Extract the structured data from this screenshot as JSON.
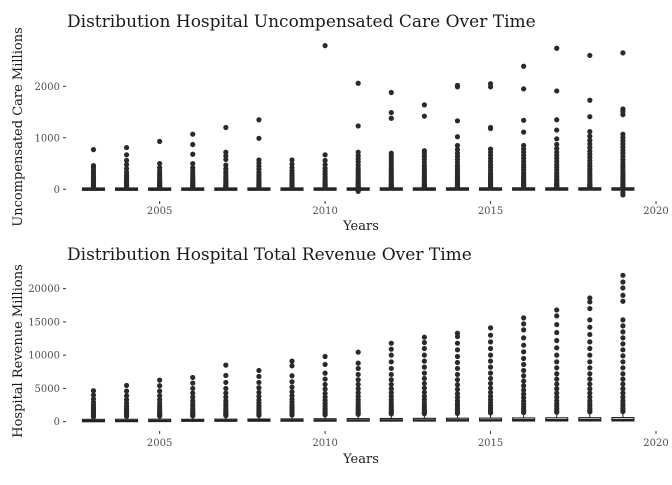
{
  "chart_data": [
    {
      "type": "box",
      "title": "Distribution Hospital Uncompensated Care Over Time",
      "xlabel": "Years",
      "ylabel": "Uncompensated Care Millions",
      "xlim": [
        2002.2,
        2020
      ],
      "ylim": [
        -150,
        2900
      ],
      "x_ticks": [
        2005,
        2010,
        2015,
        2020
      ],
      "y_ticks": [
        0,
        1000,
        2000
      ],
      "grid": false,
      "groups": [
        {
          "year": 2003,
          "q1": 0,
          "median": 2,
          "q3": 5,
          "whisker_low": 0,
          "whisker_high": 14,
          "outliers": [
            770,
            460,
            420,
            370,
            330,
            290,
            250,
            220,
            190,
            160,
            130,
            110,
            90,
            70,
            55,
            40,
            30,
            22
          ]
        },
        {
          "year": 2004,
          "q1": 0,
          "median": 2,
          "q3": 5,
          "whisker_low": 0,
          "whisker_high": 14,
          "outliers": [
            810,
            670,
            560,
            480,
            400,
            330,
            280,
            240,
            200,
            170,
            140,
            110,
            90,
            70,
            55,
            40,
            30,
            22
          ]
        },
        {
          "year": 2005,
          "q1": 0,
          "median": 2,
          "q3": 5,
          "whisker_low": 0,
          "whisker_high": 14,
          "outliers": [
            930,
            500,
            420,
            360,
            310,
            260,
            220,
            190,
            160,
            130,
            110,
            90,
            70,
            55,
            40,
            30,
            22
          ]
        },
        {
          "year": 2006,
          "q1": 0,
          "median": 2,
          "q3": 6,
          "whisker_low": 0,
          "whisker_high": 15,
          "outliers": [
            1070,
            870,
            680,
            500,
            420,
            360,
            310,
            260,
            220,
            190,
            160,
            130,
            110,
            90,
            70,
            55,
            40,
            30,
            22
          ]
        },
        {
          "year": 2007,
          "q1": 0,
          "median": 2,
          "q3": 6,
          "whisker_low": 0,
          "whisker_high": 15,
          "outliers": [
            1200,
            720,
            650,
            580,
            470,
            400,
            340,
            290,
            250,
            210,
            180,
            150,
            120,
            100,
            80,
            60,
            45,
            32,
            24
          ]
        },
        {
          "year": 2008,
          "q1": 0,
          "median": 3,
          "q3": 7,
          "whisker_low": 0,
          "whisker_high": 17,
          "outliers": [
            1350,
            990,
            570,
            510,
            450,
            390,
            330,
            280,
            240,
            200,
            170,
            140,
            110,
            90,
            70,
            55,
            40,
            28
          ]
        },
        {
          "year": 2009,
          "q1": 0,
          "median": 3,
          "q3": 7,
          "whisker_low": 0,
          "whisker_high": 17,
          "outliers": [
            570,
            490,
            420,
            360,
            310,
            260,
            220,
            190,
            160,
            130,
            110,
            90,
            70,
            55,
            40,
            28
          ]
        },
        {
          "year": 2010,
          "q1": 0,
          "median": 3,
          "q3": 8,
          "whisker_low": 0,
          "whisker_high": 19,
          "outliers": [
            2790,
            670,
            560,
            480,
            410,
            350,
            300,
            250,
            210,
            180,
            150,
            120,
            100,
            80,
            60,
            45,
            32
          ]
        },
        {
          "year": 2011,
          "q1": 0,
          "median": 3,
          "q3": 8,
          "whisker_low": -5,
          "whisker_high": 19,
          "outliers": [
            2060,
            1230,
            720,
            650,
            590,
            530,
            470,
            410,
            360,
            310,
            270,
            230,
            200,
            170,
            140,
            110,
            90,
            70,
            55,
            40,
            30,
            -20,
            -40
          ]
        },
        {
          "year": 2012,
          "q1": 0,
          "median": 3,
          "q3": 9,
          "whisker_low": -4,
          "whisker_high": 21,
          "outliers": [
            1880,
            1490,
            1380,
            700,
            650,
            600,
            550,
            500,
            450,
            400,
            360,
            320,
            280,
            240,
            210,
            180,
            150,
            120,
            100,
            80,
            60,
            45,
            32
          ]
        },
        {
          "year": 2013,
          "q1": 0,
          "median": 3,
          "q3": 9,
          "whisker_low": -4,
          "whisker_high": 22,
          "outliers": [
            1640,
            1420,
            750,
            700,
            640,
            580,
            520,
            460,
            410,
            360,
            320,
            280,
            240,
            210,
            180,
            150,
            120,
            100,
            80,
            60,
            45,
            32
          ]
        },
        {
          "year": 2014,
          "q1": 0,
          "median": 4,
          "q3": 10,
          "whisker_low": -4,
          "whisker_high": 24,
          "outliers": [
            2020,
            1990,
            1330,
            1020,
            850,
            770,
            700,
            640,
            580,
            520,
            460,
            410,
            360,
            320,
            280,
            240,
            210,
            180,
            150,
            120,
            100,
            80,
            60,
            45,
            32
          ]
        },
        {
          "year": 2015,
          "q1": 0,
          "median": 4,
          "q3": 10,
          "whisker_low": -5,
          "whisker_high": 25,
          "outliers": [
            2050,
            1990,
            1200,
            1180,
            780,
            720,
            660,
            600,
            540,
            480,
            430,
            380,
            330,
            290,
            250,
            210,
            180,
            150,
            120,
            100,
            80,
            60,
            45,
            32
          ]
        },
        {
          "year": 2016,
          "q1": 0,
          "median": 4,
          "q3": 11,
          "whisker_low": -5,
          "whisker_high": 26,
          "outliers": [
            2390,
            1950,
            1340,
            1110,
            850,
            780,
            720,
            660,
            600,
            540,
            480,
            430,
            380,
            330,
            290,
            250,
            210,
            180,
            150,
            120,
            100,
            80,
            60,
            45,
            32
          ]
        },
        {
          "year": 2017,
          "q1": 0,
          "median": 4,
          "q3": 11,
          "whisker_low": -5,
          "whisker_high": 27,
          "outliers": [
            2740,
            1910,
            1350,
            1150,
            980,
            870,
            790,
            720,
            660,
            600,
            540,
            480,
            430,
            380,
            330,
            290,
            250,
            210,
            180,
            150,
            120,
            100,
            80,
            60,
            45,
            32
          ]
        },
        {
          "year": 2018,
          "q1": 0,
          "median": 4,
          "q3": 12,
          "whisker_low": -5,
          "whisker_high": 28,
          "outliers": [
            2600,
            1730,
            1410,
            1120,
            1030,
            950,
            880,
            810,
            740,
            680,
            620,
            560,
            500,
            450,
            400,
            350,
            300,
            260,
            220,
            190,
            160,
            130,
            100,
            80,
            60,
            45,
            32
          ]
        },
        {
          "year": 2019,
          "q1": 0,
          "median": 4,
          "q3": 12,
          "whisker_low": -6,
          "whisker_high": 29,
          "outliers": [
            2650,
            1560,
            1510,
            1450,
            1070,
            1000,
            940,
            880,
            820,
            760,
            700,
            640,
            580,
            520,
            470,
            420,
            370,
            320,
            280,
            240,
            200,
            170,
            140,
            110,
            90,
            70,
            50,
            35,
            -60,
            -110
          ]
        }
      ]
    },
    {
      "type": "box",
      "title": "Distribution Hospital Total Revenue Over Time",
      "xlabel": "Years",
      "ylabel": "Hospital Revenue Millions",
      "xlim": [
        2002.2,
        2020
      ],
      "ylim": [
        -800,
        22500
      ],
      "x_ticks": [
        2005,
        2010,
        2015,
        2020
      ],
      "y_ticks": [
        0,
        5000,
        10000,
        15000,
        20000
      ],
      "grid": false,
      "groups": [
        {
          "year": 2003,
          "q1": 40,
          "median": 120,
          "q3": 300,
          "whisker_low": 0,
          "whisker_high": 700,
          "outliers": [
            4650,
            4000,
            3400,
            2900,
            2500,
            2150,
            1850,
            1600,
            1380,
            1180,
            1000,
            850,
            740
          ]
        },
        {
          "year": 2004,
          "q1": 45,
          "median": 130,
          "q3": 320,
          "whisker_low": 0,
          "whisker_high": 740,
          "outliers": [
            5450,
            4600,
            3900,
            3300,
            2800,
            2400,
            2050,
            1750,
            1500,
            1280,
            1080,
            920,
            790
          ]
        },
        {
          "year": 2005,
          "q1": 50,
          "median": 140,
          "q3": 340,
          "whisker_low": 0,
          "whisker_high": 780,
          "outliers": [
            6250,
            5400,
            4600,
            3900,
            3300,
            2800,
            2400,
            2050,
            1750,
            1500,
            1280,
            1080,
            920,
            830
          ]
        },
        {
          "year": 2006,
          "q1": 55,
          "median": 150,
          "q3": 360,
          "whisker_low": 0,
          "whisker_high": 820,
          "outliers": [
            6650,
            5800,
            5000,
            4300,
            3700,
            3150,
            2700,
            2300,
            1950,
            1650,
            1400,
            1180,
            1000,
            870
          ]
        },
        {
          "year": 2007,
          "q1": 60,
          "median": 160,
          "q3": 380,
          "whisker_low": 0,
          "whisker_high": 860,
          "outliers": [
            8500,
            6950,
            5900,
            5000,
            4300,
            3700,
            3150,
            2700,
            2300,
            1950,
            1650,
            1400,
            1180,
            1000,
            910
          ]
        },
        {
          "year": 2008,
          "q1": 65,
          "median": 170,
          "q3": 400,
          "whisker_low": 0,
          "whisker_high": 900,
          "outliers": [
            7700,
            6800,
            5900,
            5100,
            4400,
            3800,
            3250,
            2800,
            2400,
            2050,
            1750,
            1500,
            1280,
            1080,
            950
          ]
        },
        {
          "year": 2009,
          "q1": 70,
          "median": 180,
          "q3": 420,
          "whisker_low": 0,
          "whisker_high": 940,
          "outliers": [
            9100,
            8400,
            6900,
            6000,
            5200,
            4500,
            3900,
            3350,
            2900,
            2500,
            2150,
            1850,
            1600,
            1380,
            1180,
            1000
          ]
        },
        {
          "year": 2010,
          "q1": 75,
          "median": 190,
          "q3": 440,
          "whisker_low": 0,
          "whisker_high": 980,
          "outliers": [
            9800,
            8600,
            7300,
            6400,
            5600,
            4900,
            4250,
            3700,
            3200,
            2750,
            2350,
            2000,
            1700,
            1450,
            1230,
            1040
          ]
        },
        {
          "year": 2011,
          "q1": 80,
          "median": 200,
          "q3": 460,
          "whisker_low": 0,
          "whisker_high": 1020,
          "outliers": [
            10450,
            8800,
            8000,
            7100,
            6300,
            5600,
            4950,
            4350,
            3800,
            3300,
            2850,
            2450,
            2100,
            1800,
            1550,
            1320,
            1120
          ]
        },
        {
          "year": 2012,
          "q1": 85,
          "median": 210,
          "q3": 480,
          "whisker_low": 0,
          "whisker_high": 1060,
          "outliers": [
            11800,
            10900,
            10000,
            9000,
            8000,
            7100,
            6300,
            5600,
            4950,
            4350,
            3800,
            3300,
            2850,
            2450,
            2100,
            1800,
            1550,
            1320,
            1160
          ]
        },
        {
          "year": 2013,
          "q1": 90,
          "median": 220,
          "q3": 500,
          "whisker_low": 0,
          "whisker_high": 1100,
          "outliers": [
            12700,
            11900,
            11000,
            10000,
            9100,
            8200,
            7300,
            6500,
            5750,
            5050,
            4400,
            3800,
            3300,
            2850,
            2450,
            2100,
            1800,
            1550,
            1320,
            1200
          ]
        },
        {
          "year": 2014,
          "q1": 95,
          "median": 230,
          "q3": 520,
          "whisker_low": 0,
          "whisker_high": 1150,
          "outliers": [
            13300,
            12800,
            11800,
            10800,
            9800,
            8900,
            8000,
            7100,
            6300,
            5550,
            4850,
            4200,
            3650,
            3150,
            2700,
            2300,
            1950,
            1650,
            1400,
            1250
          ]
        },
        {
          "year": 2015,
          "q1": 100,
          "median": 240,
          "q3": 540,
          "whisker_low": 0,
          "whisker_high": 1200,
          "outliers": [
            14100,
            13000,
            12000,
            11000,
            10000,
            9100,
            8200,
            7300,
            6500,
            5750,
            5050,
            4400,
            3800,
            3300,
            2850,
            2450,
            2100,
            1800,
            1550,
            1320
          ]
        },
        {
          "year": 2016,
          "q1": 100,
          "median": 250,
          "q3": 560,
          "whisker_low": 0,
          "whisker_high": 1250,
          "outliers": [
            15600,
            14700,
            13800,
            12600,
            11500,
            10500,
            9500,
            8600,
            7700,
            6900,
            6100,
            5400,
            4750,
            4150,
            3600,
            3100,
            2650,
            2250,
            1900,
            1600,
            1380
          ]
        },
        {
          "year": 2017,
          "q1": 105,
          "median": 260,
          "q3": 580,
          "whisker_low": 0,
          "whisker_high": 1300,
          "outliers": [
            16800,
            15900,
            14600,
            13400,
            12200,
            11100,
            10000,
            9000,
            8100,
            7200,
            6400,
            5650,
            4950,
            4300,
            3700,
            3150,
            2700,
            2300,
            1950,
            1650,
            1420
          ]
        },
        {
          "year": 2018,
          "q1": 110,
          "median": 270,
          "q3": 600,
          "whisker_low": 0,
          "whisker_high": 1350,
          "outliers": [
            18600,
            18000,
            17000,
            15300,
            14200,
            13100,
            12000,
            11000,
            10000,
            9000,
            8100,
            7200,
            6400,
            5650,
            4950,
            4300,
            3700,
            3150,
            2700,
            2300,
            1950,
            1650,
            1470
          ]
        },
        {
          "year": 2019,
          "q1": 115,
          "median": 280,
          "q3": 620,
          "whisker_low": 0,
          "whisker_high": 1400,
          "outliers": [
            22000,
            21000,
            20100,
            19000,
            18100,
            15300,
            14400,
            13500,
            12600,
            11700,
            10800,
            9900,
            9000,
            8100,
            7200,
            6400,
            5650,
            4950,
            4300,
            3700,
            3150,
            2700,
            2300,
            1950,
            1650,
            1520
          ]
        }
      ]
    }
  ]
}
